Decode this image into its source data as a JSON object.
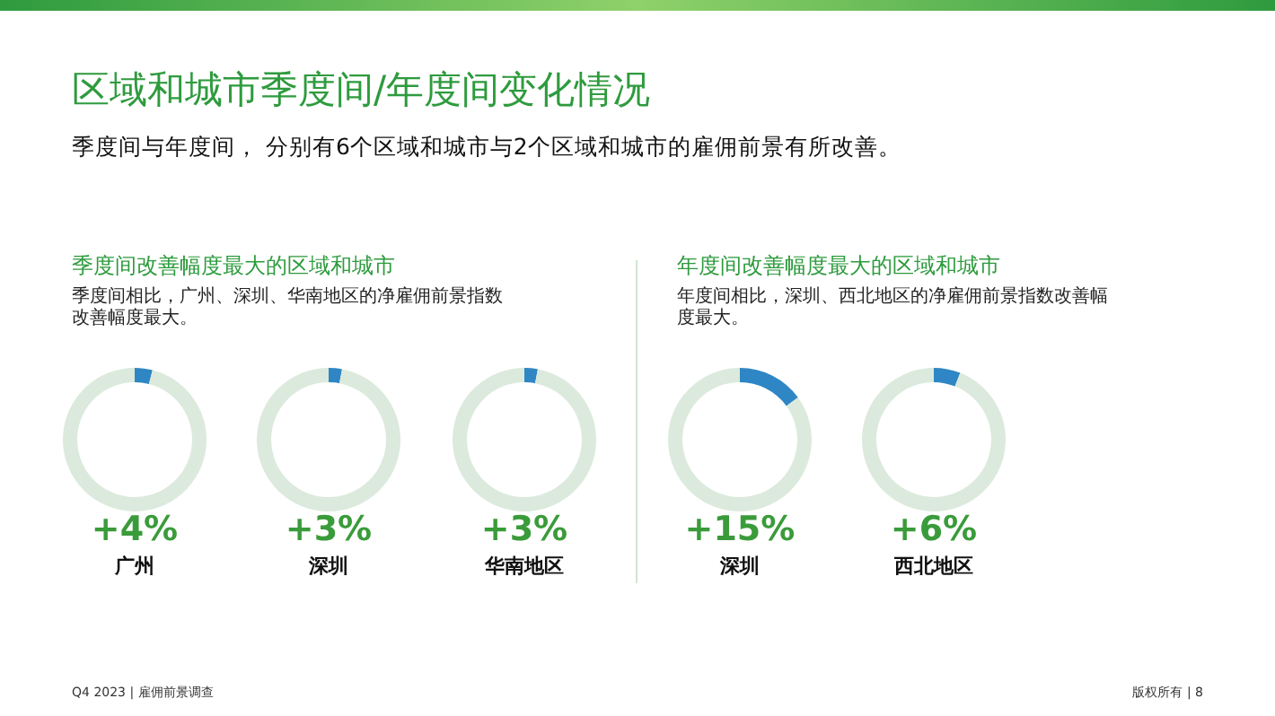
{
  "chart_data": [
    {
      "type": "other",
      "title": "区域和城市季度间/年度间变化情况",
      "subtitle": "季度间与年度间， 分别有6个区域和城市与2个区域和城市的雇佣前景有所改善。",
      "annotations": [
        "季度间改善幅度最大的区域和城市",
        "季度间相比，广州、深圳、华南地区的净雇佣前景指数改善幅度最大。",
        "年度间改善幅度最大的区域和城市",
        "年度间相比，深圳、西北地区的净雇佣前景指数改善幅度最大。",
        "Q4 2023 | 雇佣前景调查",
        "版权所有 | 8"
      ]
    },
    {
      "type": "donut",
      "title": "广州",
      "subtitle": "+4%",
      "categories": [
        null,
        null
      ],
      "values": [
        4,
        96
      ],
      "colors": [
        "#2f86c4",
        "#dbeadc"
      ]
    },
    {
      "type": "donut",
      "title": "深圳",
      "subtitle": "+3%",
      "categories": [
        null,
        null
      ],
      "values": [
        3,
        97
      ],
      "colors": [
        "#2f86c4",
        "#dbeadc"
      ]
    },
    {
      "type": "donut",
      "title": "华南地区",
      "subtitle": "+3%",
      "categories": [
        null,
        null
      ],
      "values": [
        3,
        97
      ],
      "colors": [
        "#2f86c4",
        "#dbeadc"
      ]
    },
    {
      "type": "donut",
      "title": "深圳",
      "subtitle": "+15%",
      "categories": [
        null,
        null
      ],
      "values": [
        15,
        85
      ],
      "colors": [
        "#2f86c4",
        "#dbeadc"
      ]
    },
    {
      "type": "donut",
      "title": "西北地区",
      "subtitle": "+6%",
      "categories": [
        null,
        null
      ],
      "values": [
        6,
        94
      ],
      "colors": [
        "#2f86c4",
        "#dbeadc"
      ]
    }
  ]
}
